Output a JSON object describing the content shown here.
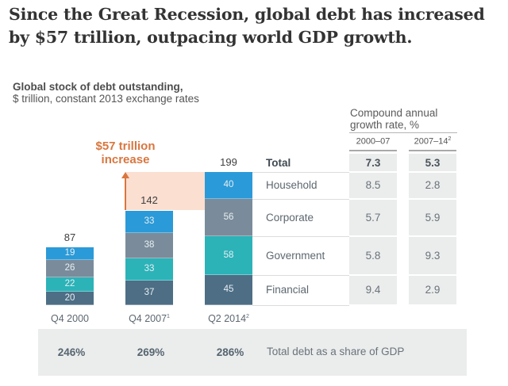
{
  "headline": "Since the Great Recession, global debt has increased by $57 trillion, outpacing world GDP growth.",
  "chart_data": {
    "type": "bar",
    "stacked": true,
    "title": "Global stock of debt outstanding,",
    "subtitle": "$ trillion, constant 2013 exchange rates",
    "categories": [
      "Q4 2000",
      "Q4 2007",
      "Q2 2014"
    ],
    "category_superscripts": [
      "",
      "1",
      "2"
    ],
    "series": [
      {
        "name": "Financial",
        "color": "#4d6e85",
        "values": [
          20,
          37,
          45
        ]
      },
      {
        "name": "Government",
        "color": "#2bb3b8",
        "values": [
          22,
          33,
          58
        ]
      },
      {
        "name": "Corporate",
        "color": "#7a8c9b",
        "values": [
          26,
          38,
          56
        ]
      },
      {
        "name": "Household",
        "color": "#2b9ad8",
        "values": [
          19,
          33,
          40
        ]
      }
    ],
    "totals": [
      87,
      142,
      199
    ],
    "annotation": {
      "line1": "$57 trillion",
      "line2": "increase",
      "color": "#d9763e",
      "band_color": "#fbdfd1",
      "from": 142,
      "to": 199
    },
    "ylim": [
      0,
      199
    ],
    "grid": false
  },
  "cagr": {
    "heading_line1": "Compound annual",
    "heading_line2": "growth rate, %",
    "periods": [
      {
        "label": "2000–07",
        "sup": ""
      },
      {
        "label": "2007–14",
        "sup": "2"
      }
    ],
    "rows": [
      {
        "label": "Total",
        "values": [
          "7.3",
          "5.3"
        ]
      },
      {
        "label": "Household",
        "values": [
          "8.5",
          "2.8"
        ]
      },
      {
        "label": "Corporate",
        "values": [
          "5.7",
          "5.9"
        ]
      },
      {
        "label": "Government",
        "values": [
          "5.8",
          "9.3"
        ]
      },
      {
        "label": "Financial",
        "values": [
          "9.4",
          "2.9"
        ]
      }
    ]
  },
  "gdp_share": {
    "values": [
      "246%",
      "269%",
      "286%"
    ],
    "label": "Total debt as a share of GDP"
  }
}
